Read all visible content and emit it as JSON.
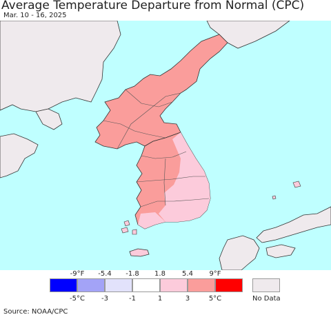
{
  "header": {
    "title": "Average Temperature Departure from Normal (CPC)",
    "date_range": "Mar. 10 - 16, 2025"
  },
  "map": {
    "ocean_color": "#bfffff",
    "no_data_color": "#efeaed",
    "border_color": "#333333",
    "regions": [
      {
        "name": "north-korea",
        "category": "3 to 5 °C",
        "color": "#fa9d9b"
      },
      {
        "name": "south-korea-west",
        "category": "3 to 5 °C",
        "color": "#fa9d9b"
      },
      {
        "name": "south-korea-east",
        "category": "1 to 3 °C",
        "color": "#fccbdb"
      },
      {
        "name": "china",
        "category": "No Data",
        "color": "#efeaed"
      },
      {
        "name": "russia",
        "category": "No Data",
        "color": "#efeaed"
      },
      {
        "name": "japan",
        "category": "No Data",
        "color": "#efeaed"
      }
    ]
  },
  "legend": {
    "fahrenheit_ticks": [
      "-9°F",
      "-5.4",
      "-1.8",
      "1.8",
      "5.4",
      "9°F"
    ],
    "celsius_ticks": [
      "-5°C",
      "-3",
      "-1",
      "1",
      "3",
      "5°C"
    ],
    "colors": [
      "#0000ff",
      "#a3a3f7",
      "#e2e2fb",
      "#ffffff",
      "#fccbdb",
      "#fa9d9b",
      "#ff0000"
    ],
    "no_data_label": "No Data",
    "no_data_color": "#efeaed"
  },
  "footer": {
    "source": "Source: NOAA/CPC"
  }
}
